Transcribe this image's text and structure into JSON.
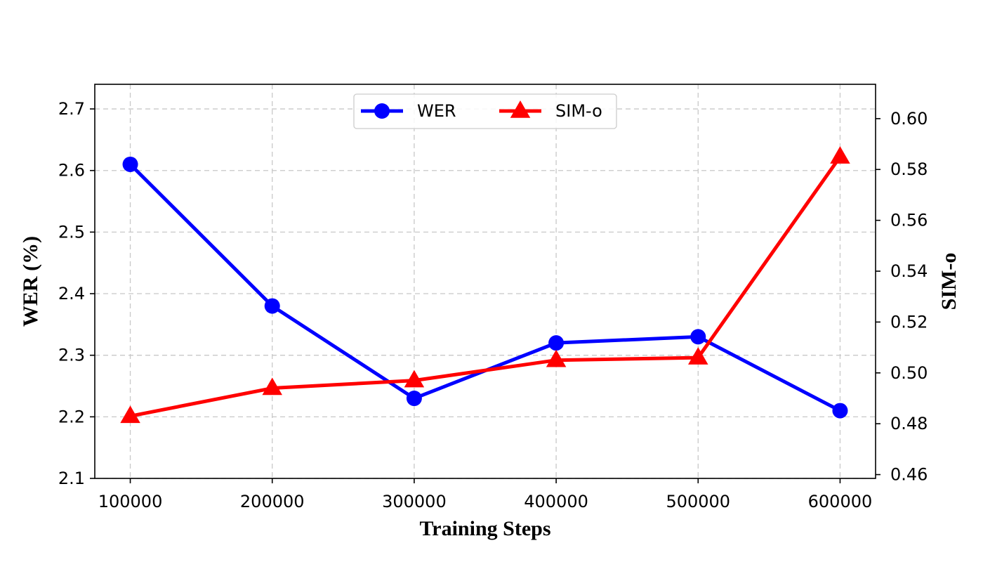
{
  "chart_data": {
    "type": "line",
    "x_label": "Training Steps",
    "y_left_label": "WER (%)",
    "y_right_label": "SIM-o",
    "x": [
      100000,
      200000,
      300000,
      400000,
      500000,
      600000
    ],
    "x_ticks": [
      "100000",
      "200000",
      "300000",
      "400000",
      "500000",
      "600000"
    ],
    "y_left_range": [
      2.1,
      2.74
    ],
    "y_left_ticks": [
      "2.1",
      "2.2",
      "2.3",
      "2.4",
      "2.5",
      "2.6",
      "2.7"
    ],
    "y_right_range": [
      0.4585,
      0.6135
    ],
    "y_right_ticks": [
      "0.46",
      "0.48",
      "0.50",
      "0.52",
      "0.54",
      "0.56",
      "0.58",
      "0.60"
    ],
    "grid": true,
    "legend_position": "top-center",
    "series": [
      {
        "name": "WER",
        "axis": "left",
        "color": "#0000ff",
        "marker": "circle",
        "values": [
          2.61,
          2.38,
          2.23,
          2.32,
          2.33,
          2.21
        ]
      },
      {
        "name": "SIM-o",
        "axis": "right",
        "color": "#ff0000",
        "marker": "triangle",
        "values": [
          0.483,
          0.494,
          0.497,
          0.505,
          0.506,
          0.585
        ]
      }
    ]
  }
}
